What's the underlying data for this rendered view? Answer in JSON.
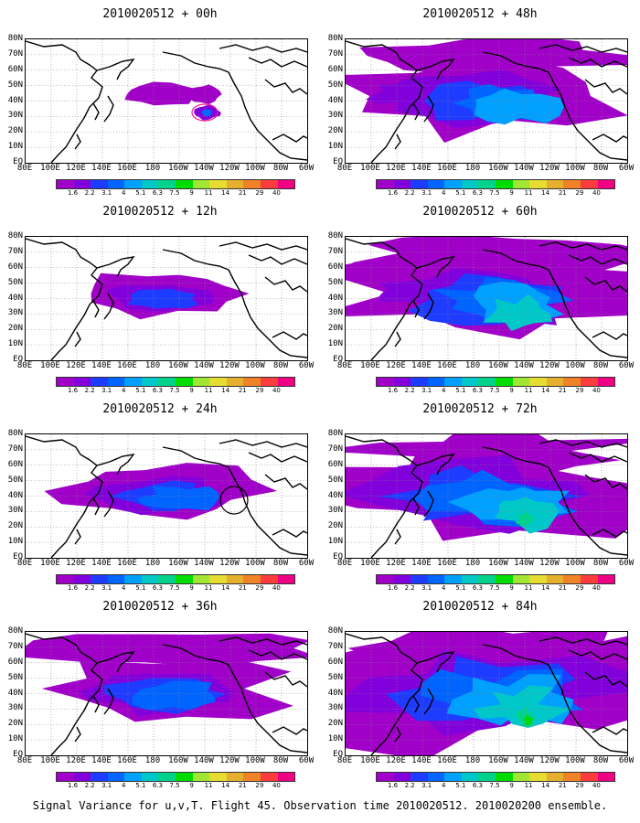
{
  "footer": "Signal Variance for u,v,T. Flight 45. Observation time 2010020512. 2010020200 ensemble.",
  "lat_labels": [
    "80N",
    "70N",
    "60N",
    "50N",
    "40N",
    "30N",
    "20N",
    "10N",
    "EQ"
  ],
  "lon_labels": [
    "80E",
    "100E",
    "120E",
    "140E",
    "160E",
    "180",
    "160W",
    "140W",
    "120W",
    "100W",
    "80W",
    "60W"
  ],
  "colorbar": {
    "labels": [
      "1.6",
      "2.2",
      "3.1",
      "4",
      "5.1",
      "6.3",
      "7.5",
      "9",
      "11",
      "14",
      "21",
      "29",
      "40"
    ],
    "colors": [
      "#a000c8",
      "#8200dc",
      "#1e3cff",
      "#0064ff",
      "#00a0ff",
      "#00c8c8",
      "#00d28c",
      "#00dc00",
      "#a0e632",
      "#e6dc32",
      "#e6af2d",
      "#f08228",
      "#fa3c3c",
      "#f00082"
    ]
  },
  "panels": [
    {
      "title": "2010020512 + 00h",
      "level": 1,
      "circle": "pink"
    },
    {
      "title": "2010020512 + 12h",
      "level": 2,
      "circle": ""
    },
    {
      "title": "2010020512 + 24h",
      "level": 3,
      "circle": "black"
    },
    {
      "title": "2010020512 + 36h",
      "level": 4,
      "circle": ""
    },
    {
      "title": "2010020512 + 48h",
      "level": 5,
      "circle": ""
    },
    {
      "title": "2010020512 + 60h",
      "level": 6,
      "circle": ""
    },
    {
      "title": "2010020512 + 72h",
      "level": 7,
      "circle": ""
    },
    {
      "title": "2010020512 + 84h",
      "level": 8,
      "circle": ""
    }
  ]
}
